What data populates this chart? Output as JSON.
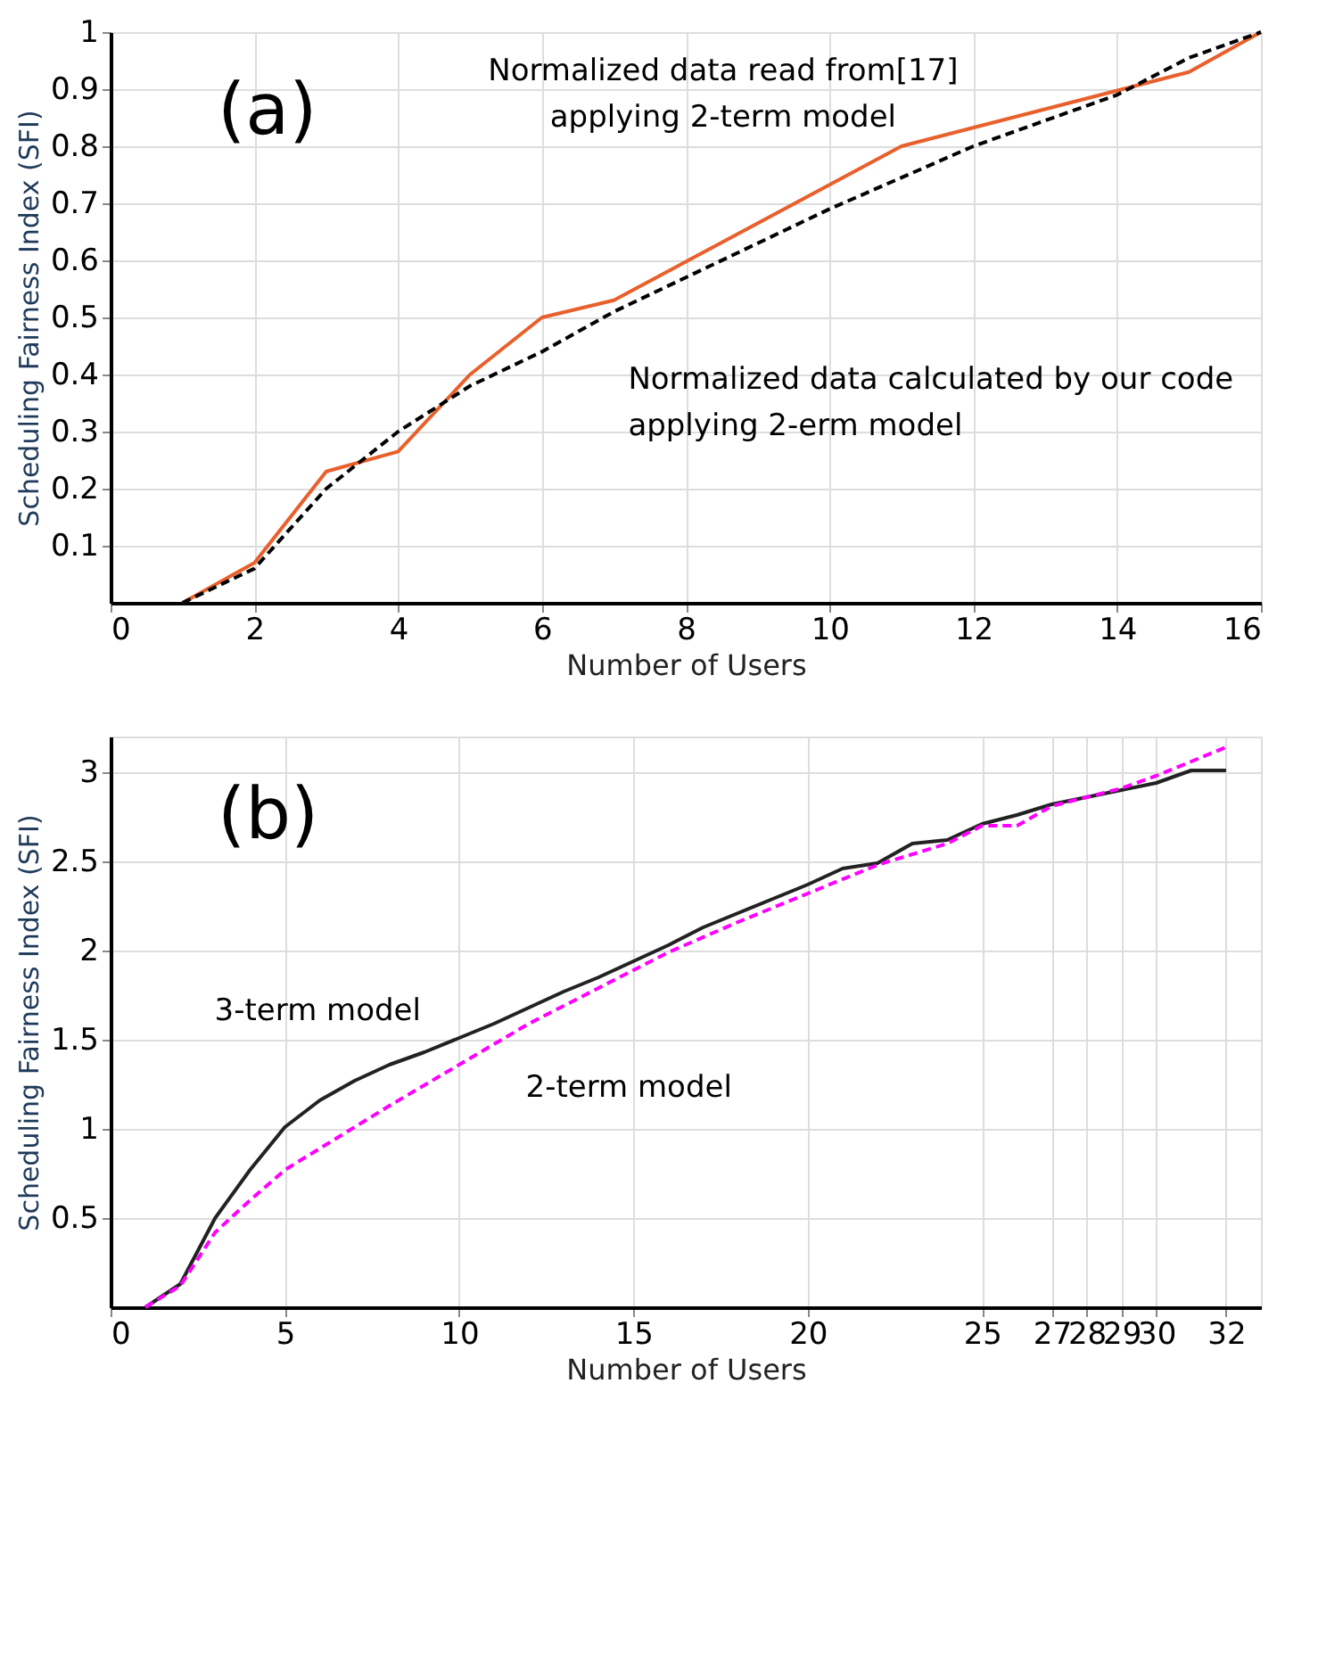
{
  "chart_data": [
    {
      "type": "line",
      "xlabel": "Number of Users",
      "ylabel": "Scheduling Fairness Index (SFI)",
      "xlim": [
        0,
        16
      ],
      "ylim": [
        0,
        1
      ],
      "xticks": [
        0,
        2,
        4,
        6,
        8,
        10,
        12,
        14,
        16
      ],
      "yticks": [
        0.1,
        0.2,
        0.3,
        0.4,
        0.5,
        0.6,
        0.7,
        0.8,
        0.9,
        1
      ],
      "grid": true,
      "series": [
        {
          "color": "#e8602c",
          "line_style": "solid",
          "x": [
            1,
            2,
            3,
            4,
            5,
            6,
            7,
            11,
            15,
            16
          ],
          "values": [
            0,
            0.07,
            0.23,
            0.265,
            0.4,
            0.5,
            0.53,
            0.8,
            0.93,
            1
          ]
        },
        {
          "color": "#000000",
          "line_style": "dashed",
          "x": [
            1,
            2,
            3,
            4,
            5,
            6,
            7,
            8,
            10,
            12,
            14,
            15,
            16
          ],
          "values": [
            0,
            0.06,
            0.2,
            0.3,
            0.38,
            0.44,
            0.51,
            0.57,
            0.69,
            0.8,
            0.89,
            0.955,
            1
          ]
        }
      ],
      "annotations": [
        "(a)",
        {
          "text": "Normalized data read from[17]\napplying 2-term model",
          "x": 11,
          "y": 0.8
        },
        {
          "text": "Normalized data calculated by our code\napplying 2-erm model",
          "x": 7,
          "y": 0.51
        }
      ]
    },
    {
      "type": "line",
      "xlabel": "Number of Users",
      "ylabel": "Scheduling Fairness Index (SFI)",
      "xlim": [
        0,
        33
      ],
      "ylim": [
        0,
        3.2
      ],
      "xticks": [
        0,
        5,
        10,
        15,
        20,
        25,
        27,
        28,
        29,
        30,
        32
      ],
      "yticks": [
        0.5,
        1,
        1.5,
        2,
        2.5,
        3
      ],
      "grid": true,
      "series": [
        {
          "color": "#222222",
          "line_style": "solid",
          "x": [
            1,
            2,
            3,
            4,
            5,
            6,
            7,
            8,
            9,
            10,
            11,
            12,
            13,
            14,
            15,
            16,
            17,
            18,
            19,
            20,
            21,
            22,
            23,
            24,
            25,
            26,
            27,
            28,
            29,
            30,
            31,
            32
          ],
          "values": [
            0,
            0.13,
            0.5,
            0.77,
            1.01,
            1.16,
            1.27,
            1.36,
            1.43,
            1.51,
            1.59,
            1.68,
            1.77,
            1.85,
            1.94,
            2.03,
            2.13,
            2.21,
            2.29,
            2.37,
            2.46,
            2.49,
            2.6,
            2.62,
            2.71,
            2.76,
            2.82,
            2.86,
            2.9,
            2.94,
            3.01,
            3.01
          ]
        },
        {
          "color": "#ff00ff",
          "line_style": "dashed",
          "x": [
            1,
            2,
            3,
            4,
            5,
            6,
            8,
            10,
            12,
            14,
            16,
            18,
            20,
            22,
            24,
            25,
            26,
            27,
            28,
            29,
            30,
            31,
            32
          ],
          "values": [
            0,
            0.12,
            0.42,
            0.6,
            0.77,
            0.89,
            1.13,
            1.36,
            1.59,
            1.79,
            1.99,
            2.16,
            2.32,
            2.48,
            2.6,
            2.7,
            2.7,
            2.81,
            2.86,
            2.91,
            2.98,
            3.06,
            3.14
          ]
        }
      ],
      "annotations": [
        "(b)",
        {
          "text": "3-term model",
          "x": 8.5,
          "y": 1.38
        },
        {
          "text": "2-term model",
          "x": 11.5,
          "y": 1.53
        }
      ]
    }
  ]
}
